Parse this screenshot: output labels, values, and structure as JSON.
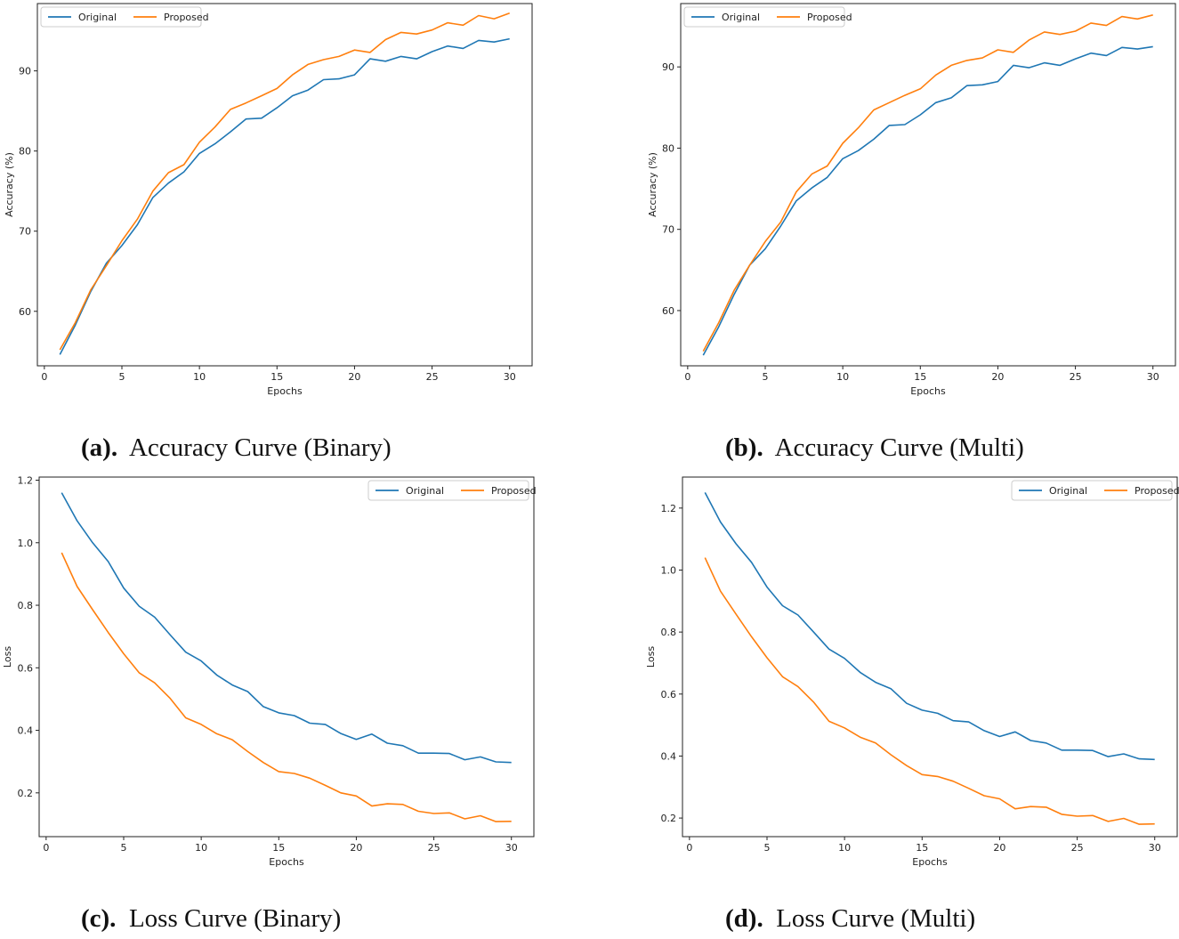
{
  "colors": {
    "original": "#1f77b4",
    "proposed": "#ff7f0e",
    "axis": "#222222"
  },
  "chart_data": [
    {
      "id": "a",
      "type": "line",
      "caption_letter": "(a).",
      "caption_text": "Accuracy Curve (Binary)",
      "xlabel": "Epochs",
      "ylabel": "Accuracy (%)",
      "xlim": [
        -0.45,
        31.45
      ],
      "ylim": [
        53.2,
        98.4
      ],
      "xticks": [
        0,
        5,
        10,
        15,
        20,
        25,
        30
      ],
      "yticks": [
        60,
        70,
        80,
        90
      ],
      "ytick_labels": [
        "60",
        "70",
        "80",
        "90"
      ],
      "legend": "top-left",
      "x": [
        1,
        2,
        3,
        4,
        5,
        6,
        7,
        8,
        9,
        10,
        11,
        12,
        13,
        14,
        15,
        16,
        17,
        18,
        19,
        20,
        21,
        22,
        23,
        24,
        25,
        26,
        27,
        28,
        29,
        30
      ],
      "series": [
        {
          "name": "Original",
          "color_key": "original",
          "values": [
            54.6,
            58.3,
            62.5,
            66.0,
            68.2,
            70.8,
            74.2,
            76.0,
            77.4,
            79.7,
            80.9,
            82.4,
            84.0,
            84.1,
            85.4,
            86.9,
            87.6,
            88.9,
            89.0,
            89.5,
            91.5,
            91.2,
            91.8,
            91.5,
            92.4,
            93.1,
            92.8,
            93.8,
            93.6,
            94.0
          ]
        },
        {
          "name": "Proposed",
          "color_key": "proposed",
          "values": [
            55.2,
            58.6,
            62.7,
            65.7,
            68.8,
            71.5,
            75.0,
            77.3,
            78.3,
            81.1,
            83.0,
            85.2,
            86.0,
            86.9,
            87.8,
            89.5,
            90.8,
            91.4,
            91.8,
            92.6,
            92.3,
            93.9,
            94.8,
            94.6,
            95.1,
            96.0,
            95.7,
            96.9,
            96.5,
            97.2
          ]
        }
      ]
    },
    {
      "id": "b",
      "type": "line",
      "caption_letter": "(b).",
      "caption_text": "Accuracy Curve (Multi)",
      "xlabel": "Epochs",
      "ylabel": "Accuracy (%)",
      "xlim": [
        -0.45,
        31.45
      ],
      "ylim": [
        53.2,
        97.8
      ],
      "xticks": [
        0,
        5,
        10,
        15,
        20,
        25,
        30
      ],
      "yticks": [
        60,
        70,
        80,
        90
      ],
      "ytick_labels": [
        "60",
        "70",
        "80",
        "90"
      ],
      "legend": "top-left",
      "x": [
        1,
        2,
        3,
        4,
        5,
        6,
        7,
        8,
        9,
        10,
        11,
        12,
        13,
        14,
        15,
        16,
        17,
        18,
        19,
        20,
        21,
        22,
        23,
        24,
        25,
        26,
        27,
        28,
        29,
        30
      ],
      "series": [
        {
          "name": "Original",
          "color_key": "original",
          "values": [
            54.5,
            58.0,
            62.0,
            65.6,
            67.6,
            70.4,
            73.5,
            75.1,
            76.4,
            78.7,
            79.7,
            81.1,
            82.8,
            82.9,
            84.1,
            85.6,
            86.2,
            87.7,
            87.8,
            88.2,
            90.2,
            89.9,
            90.5,
            90.2,
            91.0,
            91.7,
            91.4,
            92.4,
            92.2,
            92.5
          ]
        },
        {
          "name": "Proposed",
          "color_key": "proposed",
          "values": [
            55.0,
            58.5,
            62.5,
            65.6,
            68.5,
            70.9,
            74.6,
            76.8,
            77.8,
            80.6,
            82.5,
            84.7,
            85.6,
            86.5,
            87.3,
            89.0,
            90.2,
            90.8,
            91.1,
            92.1,
            91.8,
            93.3,
            94.3,
            94.0,
            94.4,
            95.4,
            95.1,
            96.2,
            95.9,
            96.4
          ]
        }
      ]
    },
    {
      "id": "c",
      "type": "line",
      "caption_letter": "(c).",
      "caption_text": "Loss Curve (Binary)",
      "xlabel": "Epochs",
      "ylabel": "Loss",
      "xlim": [
        -0.45,
        31.45
      ],
      "ylim": [
        0.06,
        1.21
      ],
      "xticks": [
        0,
        5,
        10,
        15,
        20,
        25,
        30
      ],
      "yticks": [
        0.2,
        0.4,
        0.6,
        0.8,
        1.0,
        1.2
      ],
      "ytick_labels": [
        "0.2",
        "0.4",
        "0.6",
        "0.8",
        "1.0",
        "1.2"
      ],
      "legend": "top-right",
      "x": [
        1,
        2,
        3,
        4,
        5,
        6,
        7,
        8,
        9,
        10,
        11,
        12,
        13,
        14,
        15,
        16,
        17,
        18,
        19,
        20,
        21,
        22,
        23,
        24,
        25,
        26,
        27,
        28,
        29,
        30
      ],
      "series": [
        {
          "name": "Original",
          "color_key": "original",
          "values": [
            1.16,
            1.07,
            1.0,
            0.94,
            0.855,
            0.797,
            0.762,
            0.705,
            0.65,
            0.622,
            0.577,
            0.545,
            0.524,
            0.476,
            0.456,
            0.447,
            0.423,
            0.419,
            0.39,
            0.371,
            0.388,
            0.359,
            0.351,
            0.327,
            0.327,
            0.326,
            0.306,
            0.315,
            0.299,
            0.297
          ]
        },
        {
          "name": "Proposed",
          "color_key": "proposed",
          "values": [
            0.968,
            0.86,
            0.786,
            0.713,
            0.645,
            0.584,
            0.552,
            0.502,
            0.44,
            0.419,
            0.389,
            0.37,
            0.332,
            0.297,
            0.268,
            0.262,
            0.247,
            0.224,
            0.2,
            0.19,
            0.158,
            0.165,
            0.163,
            0.141,
            0.134,
            0.136,
            0.117,
            0.127,
            0.108,
            0.109
          ]
        }
      ]
    },
    {
      "id": "d",
      "type": "line",
      "caption_letter": "(d).",
      "caption_text": "Loss Curve (Multi)",
      "xlabel": "Epochs",
      "ylabel": "Loss",
      "xlim": [
        -0.45,
        31.45
      ],
      "ylim": [
        0.14,
        1.3
      ],
      "xticks": [
        0,
        5,
        10,
        15,
        20,
        25,
        30
      ],
      "yticks": [
        0.2,
        0.4,
        0.6,
        0.8,
        1.0,
        1.2
      ],
      "ytick_labels": [
        "0.2",
        "0.4",
        "0.6",
        "0.8",
        "1.0",
        "1.2"
      ],
      "legend": "top-right",
      "x": [
        1,
        2,
        3,
        4,
        5,
        6,
        7,
        8,
        9,
        10,
        11,
        12,
        13,
        14,
        15,
        16,
        17,
        18,
        19,
        20,
        21,
        22,
        23,
        24,
        25,
        26,
        27,
        28,
        29,
        30
      ],
      "series": [
        {
          "name": "Original",
          "color_key": "original",
          "values": [
            1.25,
            1.155,
            1.085,
            1.025,
            0.945,
            0.885,
            0.855,
            0.8,
            0.745,
            0.715,
            0.67,
            0.638,
            0.617,
            0.57,
            0.548,
            0.538,
            0.514,
            0.51,
            0.482,
            0.463,
            0.478,
            0.45,
            0.442,
            0.419,
            0.419,
            0.418,
            0.398,
            0.407,
            0.391,
            0.389
          ]
        },
        {
          "name": "Proposed",
          "color_key": "proposed",
          "values": [
            1.04,
            0.932,
            0.858,
            0.785,
            0.717,
            0.656,
            0.624,
            0.574,
            0.512,
            0.491,
            0.461,
            0.442,
            0.404,
            0.369,
            0.34,
            0.334,
            0.319,
            0.296,
            0.272,
            0.262,
            0.23,
            0.237,
            0.235,
            0.212,
            0.206,
            0.208,
            0.189,
            0.199,
            0.18,
            0.181
          ]
        }
      ]
    }
  ]
}
